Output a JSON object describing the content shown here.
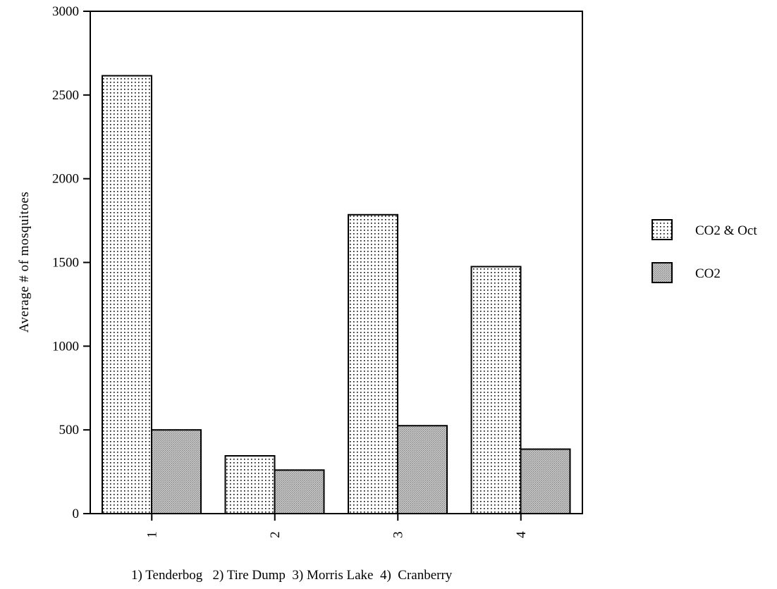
{
  "chart_data": {
    "type": "bar",
    "categories": [
      "1",
      "2",
      "3",
      "4"
    ],
    "series": [
      {
        "name": "CO2 & Oct",
        "values": [
          2615,
          345,
          1785,
          1475
        ],
        "pattern": "dots"
      },
      {
        "name": "CO2",
        "values": [
          500,
          260,
          525,
          385
        ],
        "pattern": "gray"
      }
    ],
    "ylabel": "Average # of mosquitoes",
    "caption": "1) Tenderbog   2) Tire Dump  3) Morris Lake  4)  Cranberry",
    "ylim": [
      0,
      3000
    ],
    "yticks": [
      0,
      500,
      1000,
      1500,
      2000,
      2500,
      3000
    ],
    "legend_position": "right",
    "grid": false,
    "colors": {
      "dot": "#000000",
      "gray_fill": "#b5b5b5",
      "bar_bg": "#ffffff"
    }
  }
}
